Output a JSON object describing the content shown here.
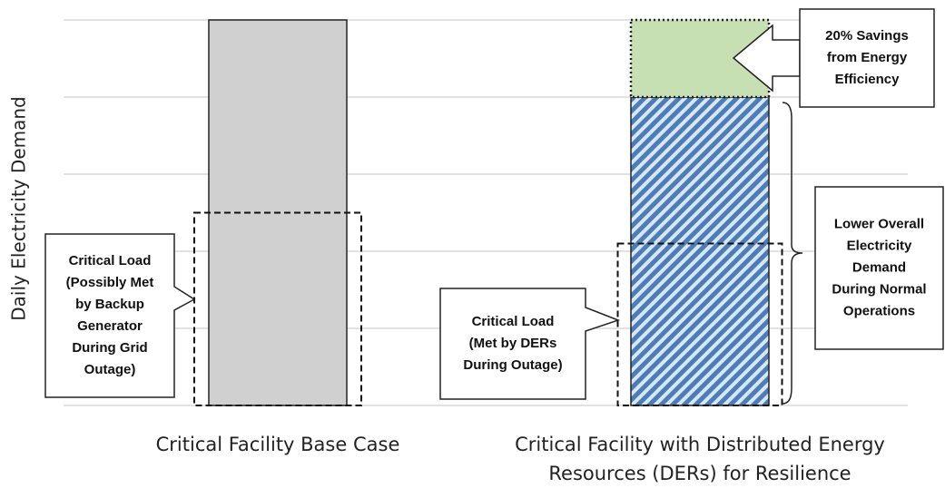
{
  "chart_data": {
    "type": "bar",
    "ylabel": "Daily Electricity Demand",
    "categories": [
      "Critical Facility Base Case",
      "Critical Facility with Distributed Energy Resources (DERs) for Resilience"
    ],
    "ylim": [
      0,
      5
    ],
    "yticks": [
      0,
      1,
      2,
      3,
      4,
      5
    ],
    "grid": true,
    "series": [
      {
        "color": "#d0d0d0",
        "border": "solid",
        "values": [
          5,
          null
        ]
      },
      {
        "color": "#4a7ebb",
        "border": "solid",
        "hatch": true,
        "values": [
          null,
          4
        ]
      },
      {
        "color": "#c6e0b4",
        "border": "dotted",
        "values": [
          null,
          1
        ]
      }
    ],
    "critical_load": [
      2.5,
      2.1
    ],
    "annotations": [
      {
        "lines": [
          "Critical Load",
          "(Possibly Met",
          "by Backup",
          "Generator",
          "During Grid",
          "Outage)"
        ]
      },
      {
        "lines": [
          "Critical Load",
          "(Met by DERs",
          "During Outage)"
        ]
      },
      {
        "lines": [
          "20% Savings",
          "from Energy",
          "Efficiency"
        ]
      },
      {
        "lines": [
          "Lower Overall",
          "Electricity",
          "Demand",
          "During Normal",
          "Operations"
        ]
      }
    ]
  }
}
